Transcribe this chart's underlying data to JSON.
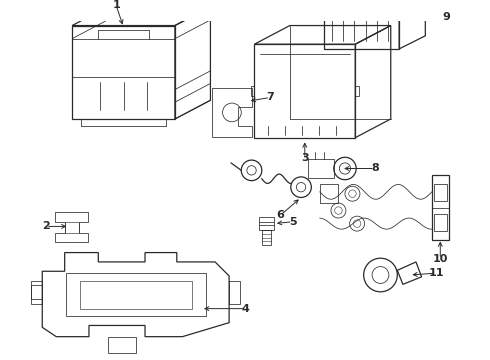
{
  "bg_color": "#ffffff",
  "line_color": "#2a2a2a",
  "fig_width": 4.9,
  "fig_height": 3.6,
  "dpi": 100,
  "lw": 0.9,
  "lw_thin": 0.55
}
